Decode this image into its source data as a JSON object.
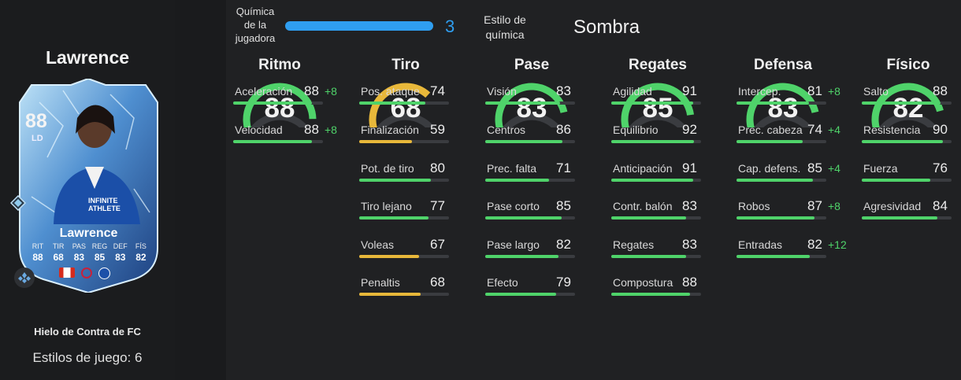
{
  "player": {
    "name": "Lawrence",
    "card_name": "Lawrence",
    "rating": "88",
    "position": "LD",
    "card_type": "Hielo de Contra de FC",
    "playstyles": "Estilos de juego: 6",
    "card_stats": [
      {
        "label": "RIT",
        "value": "88"
      },
      {
        "label": "TIR",
        "value": "68"
      },
      {
        "label": "PAS",
        "value": "83"
      },
      {
        "label": "REG",
        "value": "85"
      },
      {
        "label": "DEF",
        "value": "83"
      },
      {
        "label": "FÍS",
        "value": "82"
      }
    ],
    "kit_text": "INFINITE ATHLETE"
  },
  "chemistry": {
    "label_lines": [
      "Química",
      "de la",
      "jugadora"
    ],
    "value": "3",
    "value_fraction": 1.0,
    "style_label_lines": [
      "Estilo de",
      "química"
    ],
    "style_name": "Sombra"
  },
  "colors": {
    "green": "#4fd36a",
    "yellow": "#e8b83a",
    "blue": "#2f9ef0",
    "track": "#3a3c40"
  },
  "columns": [
    {
      "title": "Ritmo",
      "value": "88",
      "color": "green",
      "stats": [
        {
          "name": "Aceleración",
          "value": "88",
          "boost": "+8"
        },
        {
          "name": "Velocidad",
          "value": "88",
          "boost": "+8"
        }
      ]
    },
    {
      "title": "Tiro",
      "value": "68",
      "color": "yellow",
      "stats": [
        {
          "name": "Pos. ataque",
          "value": "74",
          "boost": ""
        },
        {
          "name": "Finalización",
          "value": "59",
          "boost": ""
        },
        {
          "name": "Pot. de tiro",
          "value": "80",
          "boost": ""
        },
        {
          "name": "Tiro lejano",
          "value": "77",
          "boost": ""
        },
        {
          "name": "Voleas",
          "value": "67",
          "boost": ""
        },
        {
          "name": "Penaltis",
          "value": "68",
          "boost": ""
        }
      ]
    },
    {
      "title": "Pase",
      "value": "83",
      "color": "green",
      "stats": [
        {
          "name": "Visión",
          "value": "83",
          "boost": ""
        },
        {
          "name": "Centros",
          "value": "86",
          "boost": ""
        },
        {
          "name": "Prec. falta",
          "value": "71",
          "boost": ""
        },
        {
          "name": "Pase corto",
          "value": "85",
          "boost": ""
        },
        {
          "name": "Pase largo",
          "value": "82",
          "boost": ""
        },
        {
          "name": "Efecto",
          "value": "79",
          "boost": ""
        }
      ]
    },
    {
      "title": "Regates",
      "value": "85",
      "color": "green",
      "stats": [
        {
          "name": "Agilidad",
          "value": "91",
          "boost": ""
        },
        {
          "name": "Equilibrio",
          "value": "92",
          "boost": ""
        },
        {
          "name": "Anticipación",
          "value": "91",
          "boost": ""
        },
        {
          "name": "Contr. balón",
          "value": "83",
          "boost": ""
        },
        {
          "name": "Regates",
          "value": "83",
          "boost": ""
        },
        {
          "name": "Compostura",
          "value": "88",
          "boost": ""
        }
      ]
    },
    {
      "title": "Defensa",
      "value": "83",
      "color": "green",
      "stats": [
        {
          "name": "Intercep.",
          "value": "81",
          "boost": "+8"
        },
        {
          "name": "Prec. cabeza",
          "value": "74",
          "boost": "+4"
        },
        {
          "name": "Cap. defens.",
          "value": "85",
          "boost": "+4"
        },
        {
          "name": "Robos",
          "value": "87",
          "boost": "+8"
        },
        {
          "name": "Entradas",
          "value": "82",
          "boost": "+12"
        }
      ]
    },
    {
      "title": "Físico",
      "value": "82",
      "color": "green",
      "stats": [
        {
          "name": "Salto",
          "value": "88",
          "boost": ""
        },
        {
          "name": "Resistencia",
          "value": "90",
          "boost": ""
        },
        {
          "name": "Fuerza",
          "value": "76",
          "boost": ""
        },
        {
          "name": "Agresividad",
          "value": "84",
          "boost": ""
        }
      ]
    }
  ]
}
